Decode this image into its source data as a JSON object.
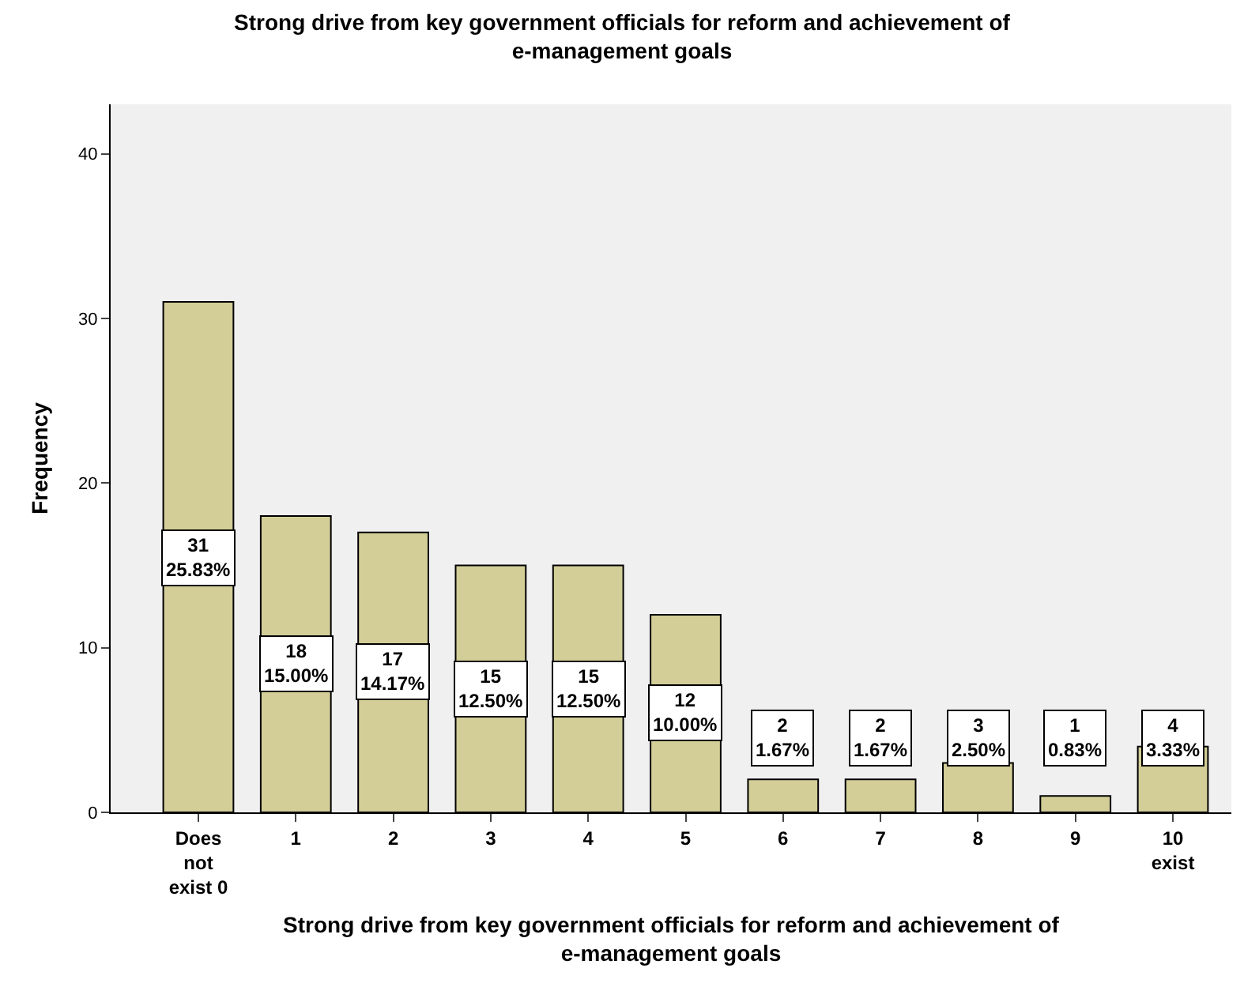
{
  "chart_data": {
    "type": "bar",
    "title": "Strong drive from key government officials for reform and achievement of e-management goals",
    "xlabel": "Strong drive from key government officials for reform and achievement of e-management goals",
    "ylabel": "Frequency",
    "categories": [
      "Does not exist 0",
      "1",
      "2",
      "3",
      "4",
      "5",
      "6",
      "7",
      "8",
      "9",
      "10 exist"
    ],
    "values": [
      31,
      18,
      17,
      15,
      15,
      12,
      2,
      2,
      3,
      1,
      4
    ],
    "value_labels": [
      "31\n25.83%",
      "18\n15.00%",
      "17\n14.17%",
      "15\n12.50%",
      "15\n12.50%",
      "12\n10.00%",
      "2\n1.67%",
      "2\n1.67%",
      "3\n2.50%",
      "1\n0.83%",
      "4\n3.33%"
    ],
    "color": "#d3ce98",
    "ylim": [
      0,
      43
    ],
    "yticks": [
      0,
      10,
      20,
      30,
      40
    ],
    "grid": false,
    "legend": false
  }
}
